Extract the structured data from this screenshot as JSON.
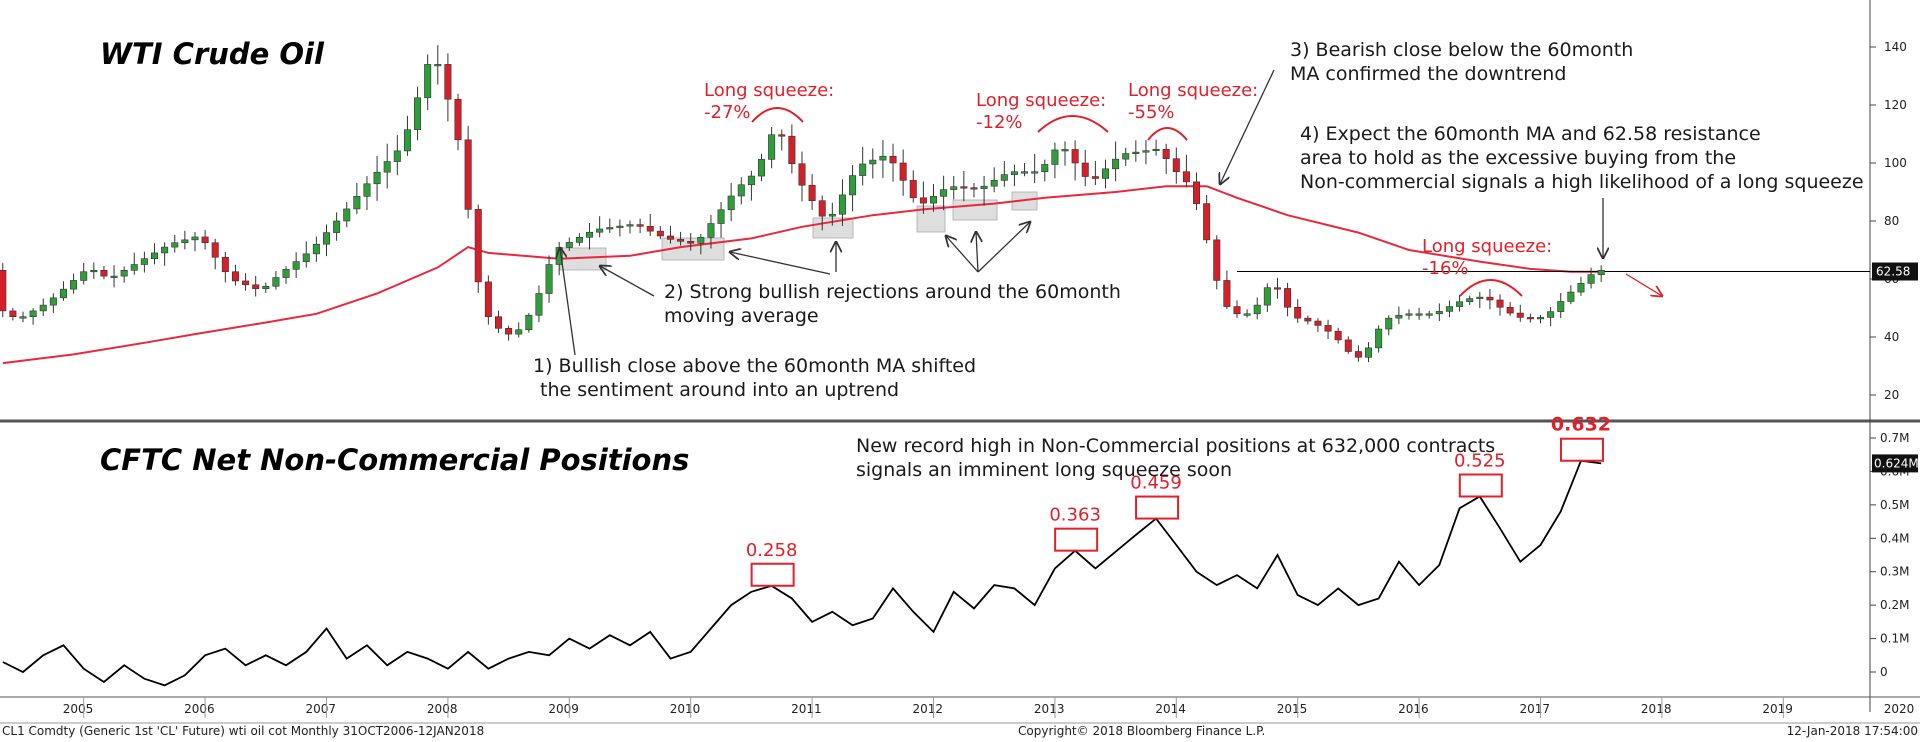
{
  "chart_data": [
    {
      "type": "candlestick",
      "title": "WTI Crude Oil",
      "ylim": [
        10,
        152
      ],
      "yticks": [
        20,
        40,
        60,
        80,
        100,
        120,
        140
      ],
      "ytick_labels": [
        "20",
        "40",
        "60",
        "80",
        "100",
        "120",
        "140"
      ],
      "ma_label": "60month",
      "last_price": 62.58,
      "last_price_label": "62.58",
      "resistance": 62.58,
      "grid": false,
      "price_path": [
        [
          "2004-11",
          50
        ],
        [
          "2005-01",
          46
        ],
        [
          "2005-04",
          52
        ],
        [
          "2005-08",
          64
        ],
        [
          "2005-10",
          60
        ],
        [
          "2006-01",
          66
        ],
        [
          "2006-04",
          72
        ],
        [
          "2006-07",
          75
        ],
        [
          "2006-10",
          60
        ],
        [
          "2007-01",
          56
        ],
        [
          "2007-03",
          62
        ],
        [
          "2007-06",
          70
        ],
        [
          "2007-09",
          82
        ],
        [
          "2007-12",
          95
        ],
        [
          "2008-03",
          106
        ],
        [
          "2008-05",
          128
        ],
        [
          "2008-06",
          140
        ],
        [
          "2008-07",
          128
        ],
        [
          "2008-08",
          116
        ],
        [
          "2008-09",
          100
        ],
        [
          "2008-10",
          68
        ],
        [
          "2008-11",
          50
        ],
        [
          "2008-12",
          44
        ],
        [
          "2009-02",
          40
        ],
        [
          "2009-04",
          50
        ],
        [
          "2009-06",
          70
        ],
        [
          "2009-10",
          77
        ],
        [
          "2010-02",
          79
        ],
        [
          "2010-05",
          74
        ],
        [
          "2010-08",
          72
        ],
        [
          "2010-12",
          91
        ],
        [
          "2011-02",
          97
        ],
        [
          "2011-04",
          114
        ],
        [
          "2011-06",
          95
        ],
        [
          "2011-09",
          79
        ],
        [
          "2011-12",
          99
        ],
        [
          "2012-03",
          103
        ],
        [
          "2012-06",
          85
        ],
        [
          "2012-09",
          92
        ],
        [
          "2012-12",
          91
        ],
        [
          "2013-03",
          97
        ],
        [
          "2013-06",
          97
        ],
        [
          "2013-08",
          107
        ],
        [
          "2013-11",
          93
        ],
        [
          "2014-02",
          103
        ],
        [
          "2014-06",
          105
        ],
        [
          "2014-07",
          98
        ],
        [
          "2014-08",
          96
        ],
        [
          "2014-09",
          91
        ],
        [
          "2014-10",
          81
        ],
        [
          "2014-11",
          66
        ],
        [
          "2014-12",
          53
        ],
        [
          "2015-01",
          48
        ],
        [
          "2015-03",
          48
        ],
        [
          "2015-05",
          60
        ],
        [
          "2015-07",
          47
        ],
        [
          "2015-09",
          45
        ],
        [
          "2015-11",
          41
        ],
        [
          "2016-01",
          33
        ],
        [
          "2016-02",
          33
        ],
        [
          "2016-04",
          46
        ],
        [
          "2016-06",
          48
        ],
        [
          "2016-09",
          48
        ],
        [
          "2016-12",
          53
        ],
        [
          "2017-02",
          54
        ],
        [
          "2017-04",
          49
        ],
        [
          "2017-06",
          46
        ],
        [
          "2017-08",
          47
        ],
        [
          "2017-10",
          54
        ],
        [
          "2017-12",
          60
        ],
        [
          "2018-01",
          63
        ]
      ],
      "ma_path": [
        [
          "2004-11",
          31
        ],
        [
          "2005-06",
          34
        ],
        [
          "2006-01",
          38
        ],
        [
          "2006-06",
          41
        ],
        [
          "2007-01",
          45
        ],
        [
          "2007-06",
          48
        ],
        [
          "2007-12",
          55
        ],
        [
          "2008-06",
          64
        ],
        [
          "2008-09",
          71
        ],
        [
          "2008-11",
          69
        ],
        [
          "2009-06",
          67
        ],
        [
          "2010-01",
          68
        ],
        [
          "2010-06",
          71
        ],
        [
          "2011-01",
          74
        ],
        [
          "2011-06",
          78
        ],
        [
          "2012-01",
          82
        ],
        [
          "2012-06",
          84
        ],
        [
          "2013-01",
          86
        ],
        [
          "2013-06",
          88
        ],
        [
          "2014-01",
          90
        ],
        [
          "2014-06",
          92
        ],
        [
          "2014-10",
          92
        ],
        [
          "2015-01",
          88
        ],
        [
          "2015-06",
          82
        ],
        [
          "2016-01",
          76
        ],
        [
          "2016-06",
          70
        ],
        [
          "2017-01",
          66
        ],
        [
          "2017-06",
          63.5
        ],
        [
          "2017-10",
          62.5
        ],
        [
          "2018-01",
          62.5
        ]
      ]
    },
    {
      "type": "line",
      "title": "CFTC Net Non-Commercial Positions",
      "series_unit": "M",
      "ylim": [
        -0.06,
        0.74
      ],
      "yticks": [
        0,
        0.1,
        0.2,
        0.3,
        0.4,
        0.5,
        0.6,
        0.7
      ],
      "ytick_labels": [
        "0",
        "0.1M",
        "0.2M",
        "0.3M",
        "0.4M",
        "0.5M",
        "0.6M",
        "0.7M"
      ],
      "last_value_label": "0.624M",
      "path": [
        [
          "2004-11",
          0.03
        ],
        [
          "2005-01",
          0.0
        ],
        [
          "2005-03",
          0.05
        ],
        [
          "2005-05",
          0.08
        ],
        [
          "2005-07",
          0.01
        ],
        [
          "2005-09",
          -0.03
        ],
        [
          "2005-11",
          0.02
        ],
        [
          "2006-01",
          -0.02
        ],
        [
          "2006-03",
          -0.04
        ],
        [
          "2006-05",
          -0.01
        ],
        [
          "2006-07",
          0.05
        ],
        [
          "2006-09",
          0.07
        ],
        [
          "2006-11",
          0.02
        ],
        [
          "2007-01",
          0.05
        ],
        [
          "2007-03",
          0.02
        ],
        [
          "2007-05",
          0.06
        ],
        [
          "2007-07",
          0.13
        ],
        [
          "2007-09",
          0.04
        ],
        [
          "2007-11",
          0.08
        ],
        [
          "2008-01",
          0.02
        ],
        [
          "2008-03",
          0.06
        ],
        [
          "2008-05",
          0.04
        ],
        [
          "2008-07",
          0.01
        ],
        [
          "2008-09",
          0.06
        ],
        [
          "2008-11",
          0.01
        ],
        [
          "2009-01",
          0.04
        ],
        [
          "2009-03",
          0.06
        ],
        [
          "2009-05",
          0.05
        ],
        [
          "2009-07",
          0.1
        ],
        [
          "2009-09",
          0.07
        ],
        [
          "2009-11",
          0.11
        ],
        [
          "2010-01",
          0.08
        ],
        [
          "2010-03",
          0.12
        ],
        [
          "2010-05",
          0.04
        ],
        [
          "2010-07",
          0.06
        ],
        [
          "2010-09",
          0.13
        ],
        [
          "2010-11",
          0.2
        ],
        [
          "2011-01",
          0.24
        ],
        [
          "2011-03",
          0.258
        ],
        [
          "2011-05",
          0.22
        ],
        [
          "2011-07",
          0.15
        ],
        [
          "2011-09",
          0.18
        ],
        [
          "2011-11",
          0.14
        ],
        [
          "2012-01",
          0.16
        ],
        [
          "2012-03",
          0.25
        ],
        [
          "2012-05",
          0.18
        ],
        [
          "2012-07",
          0.12
        ],
        [
          "2012-09",
          0.24
        ],
        [
          "2012-11",
          0.19
        ],
        [
          "2013-01",
          0.26
        ],
        [
          "2013-03",
          0.25
        ],
        [
          "2013-05",
          0.2
        ],
        [
          "2013-07",
          0.31
        ],
        [
          "2013-09",
          0.363
        ],
        [
          "2013-11",
          0.31
        ],
        [
          "2014-01",
          0.36
        ],
        [
          "2014-03",
          0.41
        ],
        [
          "2014-05",
          0.459
        ],
        [
          "2014-07",
          0.38
        ],
        [
          "2014-09",
          0.3
        ],
        [
          "2014-11",
          0.26
        ],
        [
          "2015-01",
          0.29
        ],
        [
          "2015-03",
          0.25
        ],
        [
          "2015-05",
          0.35
        ],
        [
          "2015-07",
          0.23
        ],
        [
          "2015-09",
          0.2
        ],
        [
          "2015-11",
          0.25
        ],
        [
          "2016-01",
          0.2
        ],
        [
          "2016-03",
          0.22
        ],
        [
          "2016-05",
          0.33
        ],
        [
          "2016-07",
          0.26
        ],
        [
          "2016-09",
          0.32
        ],
        [
          "2016-11",
          0.49
        ],
        [
          "2017-01",
          0.525
        ],
        [
          "2017-03",
          0.43
        ],
        [
          "2017-05",
          0.33
        ],
        [
          "2017-07",
          0.38
        ],
        [
          "2017-09",
          0.48
        ],
        [
          "2017-11",
          0.632
        ],
        [
          "2018-01",
          0.624
        ]
      ],
      "peaks": [
        {
          "date": "2011-03",
          "value": 0.258,
          "label": "0.258"
        },
        {
          "date": "2013-09",
          "value": 0.363,
          "label": "0.363"
        },
        {
          "date": "2014-05",
          "value": 0.459,
          "label": "0.459"
        },
        {
          "date": "2017-01",
          "value": 0.525,
          "label": "0.525"
        },
        {
          "date": "2017-11",
          "value": 0.632,
          "label": "0.632"
        }
      ]
    }
  ],
  "x_axis": {
    "years": [
      "2005",
      "2006",
      "2007",
      "2008",
      "2009",
      "2010",
      "2011",
      "2012",
      "2013",
      "2014",
      "2015",
      "2016",
      "2017",
      "2018",
      "2019",
      "2020"
    ]
  },
  "annotations": {
    "ann1_line1": "1) Bullish close above the 60month MA shifted",
    "ann1_line2": "the sentiment around into an uptrend",
    "ann2_line1": "2) Strong bullish rejections around the 60month",
    "ann2_line2": "moving average",
    "ann3_line1": "3) Bearish close below the 60month",
    "ann3_line2": "MA confirmed the downtrend",
    "ann4_line1": "4) Expect the 60month MA and 62.58 resistance",
    "ann4_line2": "area to hold as the excessive buying from the",
    "ann4_line3": "Non-commercial signals a high likelihood of a long squeeze",
    "sq1_title": "Long squeeze:",
    "sq1_pct": "-27%",
    "sq2_title": "Long squeeze:",
    "sq2_pct": "-12%",
    "sq3_title": "Long squeeze:",
    "sq3_pct": "-55%",
    "sq4_title": "Long squeeze:",
    "sq4_pct": "-16%",
    "cftc_line1": "New record high in Non-Commercial positions at 632,000 contracts",
    "cftc_line2": "signals an imminent long squeeze soon"
  },
  "footer": {
    "left": "CL1 Comdty (Generic 1st 'CL' Future) wti oil cot  Monthly 31OCT2006-12JAN2018",
    "center": "Copyright© 2018 Bloomberg Finance L.P.",
    "right": "12-Jan-2018 17:54:00"
  },
  "colors": {
    "ma": "#e8283c",
    "up": "#2f9e3a",
    "down": "#d4202a",
    "annotation_red": "#e0202a",
    "line": "#000000",
    "zone": "#d3d3d3",
    "axis_panel": "#ffffff"
  }
}
